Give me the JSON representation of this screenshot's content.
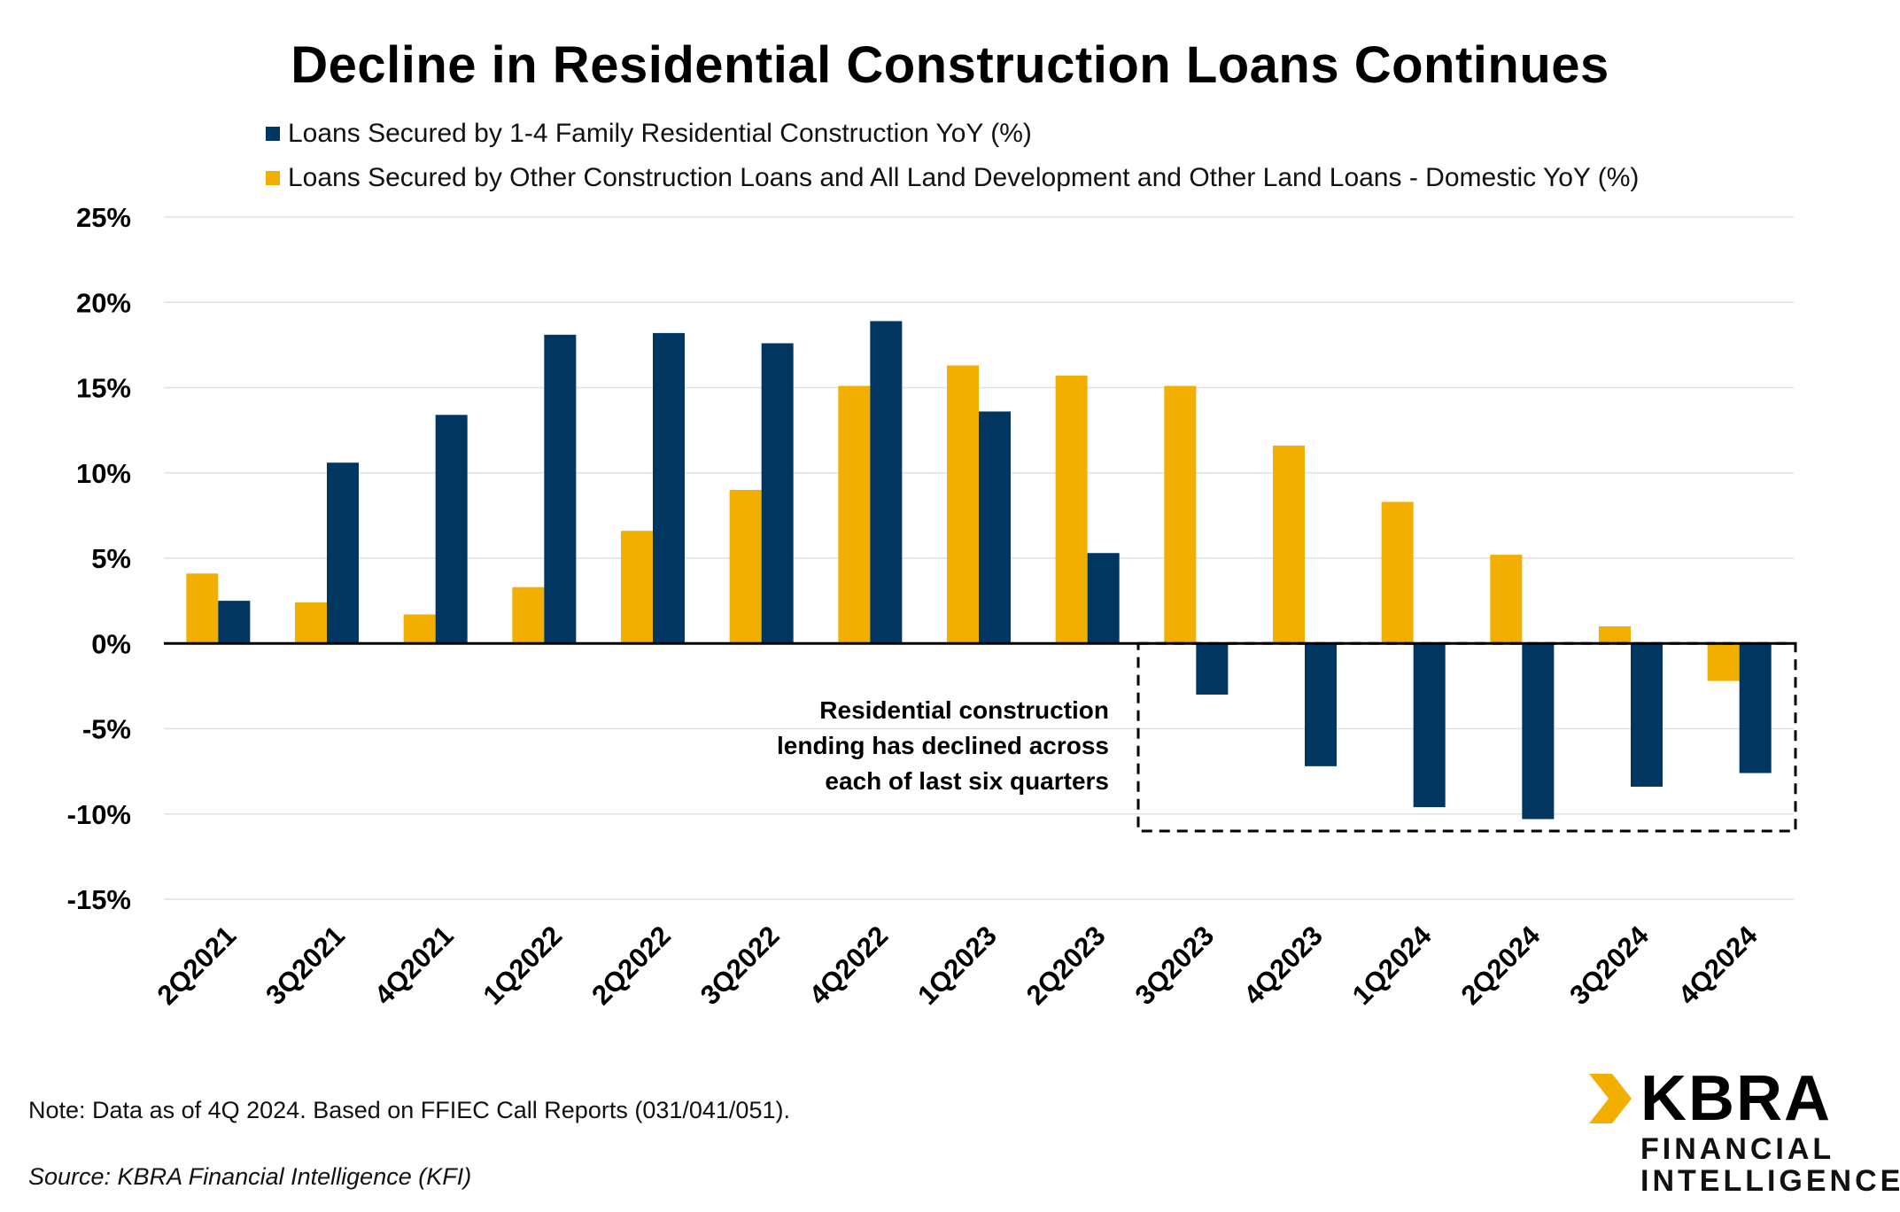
{
  "chart_data": {
    "type": "bar",
    "title": "Decline in Residential Construction Loans Continues",
    "categories": [
      "2Q2021",
      "3Q2021",
      "4Q2021",
      "1Q2022",
      "2Q2022",
      "3Q2022",
      "4Q2022",
      "1Q2023",
      "2Q2023",
      "3Q2023",
      "4Q2023",
      "1Q2024",
      "2Q2024",
      "3Q2024",
      "4Q2024"
    ],
    "series": [
      {
        "name": "Loans Secured by Other Construction Loans and All Land Development and Other Land Loans - Domestic YoY (%)",
        "color": "#F2AF00",
        "values": [
          4.1,
          2.4,
          1.7,
          3.3,
          6.6,
          9.0,
          15.1,
          16.3,
          15.7,
          15.1,
          11.6,
          8.3,
          5.2,
          1.0,
          -2.2
        ]
      },
      {
        "name": "Loans Secured by 1-4 Family Residential Construction YoY (%)",
        "color": "#003660",
        "values": [
          2.5,
          10.6,
          13.4,
          18.1,
          18.2,
          17.6,
          18.9,
          13.6,
          5.3,
          -3.0,
          -7.2,
          -9.6,
          -10.3,
          -8.4,
          -7.6
        ]
      }
    ],
    "legend": [
      "Loans Secured by 1-4 Family Residential Construction YoY (%)",
      "Loans Secured by Other Construction Loans and All Land Development and Other Land Loans - Domestic YoY (%)"
    ],
    "y_ticks": [
      "25%",
      "20%",
      "15%",
      "10%",
      "5%",
      "0%",
      "-5%",
      "-10%",
      "-15%"
    ],
    "ylim": [
      -15,
      25
    ],
    "grid": true,
    "xlabel": "",
    "ylabel": "",
    "annotation": {
      "lines": [
        "Residential construction",
        "lending  has declined across",
        "each of last six quarters"
      ],
      "highlight_categories": [
        "3Q2023",
        "4Q2023",
        "1Q2024",
        "2Q2024",
        "3Q2024",
        "4Q2024"
      ]
    }
  },
  "footer": {
    "note": "Note: Data as of 4Q 2024. Based on FFIEC Call Reports (031/041/051).",
    "source": "Source: KBRA Financial Intelligence (KFI)"
  },
  "logo": {
    "name": "KBRA",
    "line1": "FINANCIAL",
    "line2": "INTELLIGENCE",
    "colors": {
      "yellow": "#F2AF00",
      "dark": "#000000"
    }
  }
}
